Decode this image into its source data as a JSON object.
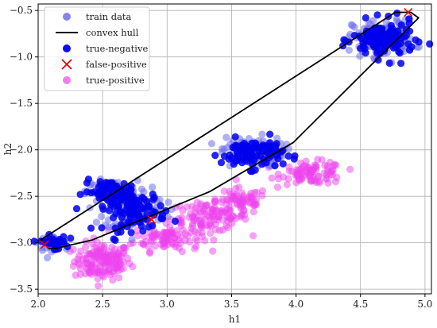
{
  "chart_data": {
    "type": "scatter",
    "xlabel": "h1",
    "ylabel": "h2",
    "xlim": [
      2.0,
      5.05
    ],
    "ylim": [
      -3.55,
      -0.43
    ],
    "xticks": [
      2.0,
      2.5,
      3.0,
      3.5,
      4.0,
      4.5,
      5.0
    ],
    "xtick_labels": [
      "2.0",
      "2.5",
      "3.0",
      "3.5",
      "4.0",
      "4.5",
      "5.0"
    ],
    "yticks": [
      -0.5,
      -1.0,
      -1.5,
      -2.0,
      -2.5,
      -3.0,
      -3.5
    ],
    "ytick_labels": [
      "−0.5",
      "−1.0",
      "−1.5",
      "−2.0",
      "−2.5",
      "−3.0",
      "−3.5"
    ],
    "grid": true,
    "legend_position": "top-left",
    "legend": [
      {
        "label": "train data",
        "marker": "circle",
        "color": "#6f6ff0"
      },
      {
        "label": "convex hull",
        "marker": "line",
        "color": "#000000"
      },
      {
        "label": "true-negative",
        "marker": "circle",
        "color": "#0000ee"
      },
      {
        "label": "false-positive",
        "marker": "x",
        "color": "#ee0000"
      },
      {
        "label": "true-positive",
        "marker": "circle",
        "color": "#ee44ee"
      }
    ],
    "series": [
      {
        "name": "train data",
        "color": "#6f6ff0",
        "clusters": [
          {
            "center": [
              2.1,
              -3.0
            ],
            "sx": 0.05,
            "sy": 0.04,
            "n": 35
          },
          {
            "center": [
              2.57,
              -2.45
            ],
            "sx": 0.1,
            "sy": 0.06,
            "n": 70
          },
          {
            "center": [
              2.75,
              -2.65
            ],
            "sx": 0.12,
            "sy": 0.11,
            "n": 110
          },
          {
            "center": [
              3.66,
              -2.02
            ],
            "sx": 0.12,
            "sy": 0.08,
            "n": 110
          },
          {
            "center": [
              4.68,
              -0.8
            ],
            "sx": 0.12,
            "sy": 0.1,
            "n": 130
          }
        ]
      },
      {
        "name": "true-negative",
        "color": "#0000ee",
        "clusters": [
          {
            "center": [
              2.12,
              -3.0
            ],
            "sx": 0.05,
            "sy": 0.04,
            "n": 30
          },
          {
            "center": [
              2.55,
              -2.45
            ],
            "sx": 0.1,
            "sy": 0.06,
            "n": 60
          },
          {
            "center": [
              2.75,
              -2.65
            ],
            "sx": 0.12,
            "sy": 0.11,
            "n": 100
          },
          {
            "center": [
              3.66,
              -2.04
            ],
            "sx": 0.12,
            "sy": 0.08,
            "n": 100
          },
          {
            "center": [
              4.68,
              -0.82
            ],
            "sx": 0.12,
            "sy": 0.1,
            "n": 120
          }
        ]
      },
      {
        "name": "true-positive",
        "color": "#ee44ee",
        "clusters": [
          {
            "center": [
              2.5,
              -3.2
            ],
            "sx": 0.11,
            "sy": 0.1,
            "n": 150
          },
          {
            "center": [
              3.0,
              -2.95
            ],
            "sx": 0.13,
            "sy": 0.07,
            "n": 90
          },
          {
            "center": [
              3.33,
              -2.72
            ],
            "sx": 0.15,
            "sy": 0.08,
            "n": 110
          },
          {
            "center": [
              3.58,
              -2.55
            ],
            "sx": 0.1,
            "sy": 0.07,
            "n": 60
          },
          {
            "center": [
              4.13,
              -2.25
            ],
            "sx": 0.12,
            "sy": 0.06,
            "n": 90
          }
        ]
      },
      {
        "name": "false-positive",
        "color": "#ee0000",
        "points": [
          [
            4.87,
            -0.52
          ],
          [
            2.05,
            -3.02
          ],
          [
            2.88,
            -2.75
          ]
        ]
      }
    ],
    "convex_hull": [
      [
        2.08,
        -3.06
      ],
      [
        2.02,
        -2.97
      ],
      [
        4.77,
        -0.52
      ],
      [
        4.89,
        -0.52
      ],
      [
        4.95,
        -0.58
      ],
      [
        3.98,
        -1.92
      ],
      [
        3.33,
        -2.45
      ],
      [
        2.42,
        -2.97
      ],
      [
        2.14,
        -3.06
      ]
    ]
  }
}
